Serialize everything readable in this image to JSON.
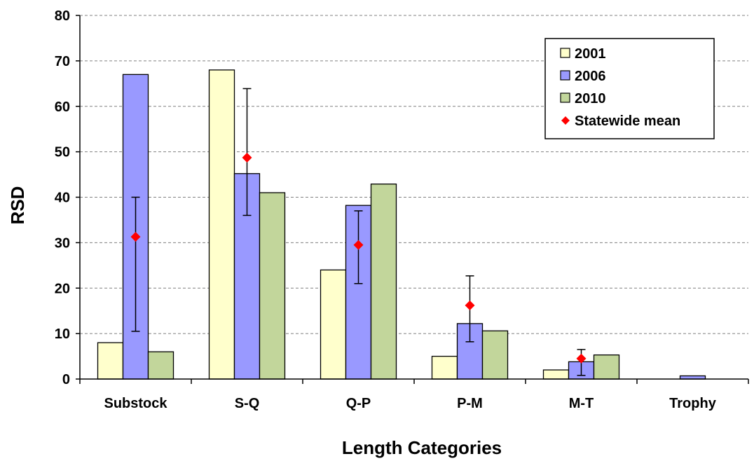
{
  "chart_data": {
    "type": "bar",
    "title": "",
    "xlabel": "Length Categories",
    "ylabel": "RSD",
    "ylim": [
      0,
      80
    ],
    "yticks": [
      0,
      10,
      20,
      30,
      40,
      50,
      60,
      70,
      80
    ],
    "grid": "horizontal dashed",
    "legend_position": "top-right",
    "categories": [
      "Substock",
      "S-Q",
      "Q-P",
      "P-M",
      "M-T",
      "Trophy"
    ],
    "series": [
      {
        "name": "2001",
        "color": "#FFFFCC",
        "values": [
          8,
          68,
          24,
          5,
          2,
          0
        ]
      },
      {
        "name": "2006",
        "color": "#9999FF",
        "values": [
          67,
          45.2,
          38.2,
          12.2,
          3.8,
          0.7
        ]
      },
      {
        "name": "2010",
        "color": "#C2D69B",
        "values": [
          6,
          41,
          42.9,
          10.6,
          5.3,
          0
        ]
      }
    ],
    "statewide_mean": {
      "name": "Statewide mean",
      "color": "#FF0000",
      "values": [
        31.3,
        48.7,
        29.5,
        16.2,
        4.5,
        null
      ],
      "error_low": [
        10.5,
        36,
        21,
        8.2,
        0.8,
        null
      ],
      "error_high": [
        40,
        63.9,
        37,
        22.7,
        6.5,
        null
      ]
    }
  }
}
